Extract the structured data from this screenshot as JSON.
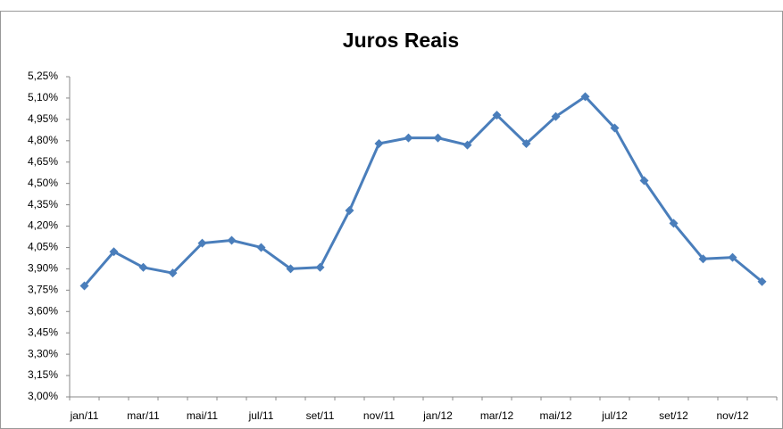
{
  "chart_data": {
    "type": "line",
    "title": "Juros Reais",
    "categories": [
      "jan/11",
      null,
      "mar/11",
      null,
      "mai/11",
      null,
      "jul/11",
      null,
      "set/11",
      null,
      "nov/11",
      null,
      "jan/12",
      null,
      "mar/12",
      null,
      "mai/12",
      null,
      "jul/12",
      null,
      "set/12",
      null,
      "nov/12",
      null
    ],
    "series": [
      {
        "name": "Juros Reais",
        "color": "#4a7ebb",
        "values": [
          3.78,
          4.02,
          3.91,
          3.87,
          4.08,
          4.1,
          4.05,
          3.9,
          3.91,
          4.31,
          4.78,
          4.82,
          4.82,
          4.77,
          4.98,
          4.78,
          4.97,
          5.11,
          4.89,
          4.52,
          4.22,
          3.97,
          3.98,
          3.81
        ]
      }
    ],
    "ylim": [
      3.0,
      5.25
    ],
    "yticks": [
      {
        "value": 3.0,
        "label": "3,00%"
      },
      {
        "value": 3.15,
        "label": "3,15%"
      },
      {
        "value": 3.3,
        "label": "3,30%"
      },
      {
        "value": 3.45,
        "label": "3,45%"
      },
      {
        "value": 3.6,
        "label": "3,60%"
      },
      {
        "value": 3.75,
        "label": "3,75%"
      },
      {
        "value": 3.9,
        "label": "3,90%"
      },
      {
        "value": 4.05,
        "label": "4,05%"
      },
      {
        "value": 4.2,
        "label": "4,20%"
      },
      {
        "value": 4.35,
        "label": "4,35%"
      },
      {
        "value": 4.5,
        "label": "4,50%"
      },
      {
        "value": 4.65,
        "label": "4,65%"
      },
      {
        "value": 4.8,
        "label": "4,80%"
      },
      {
        "value": 4.95,
        "label": "4,95%"
      },
      {
        "value": 5.1,
        "label": "5,10%"
      },
      {
        "value": 5.25,
        "label": "5,25%"
      }
    ],
    "grid": false
  }
}
